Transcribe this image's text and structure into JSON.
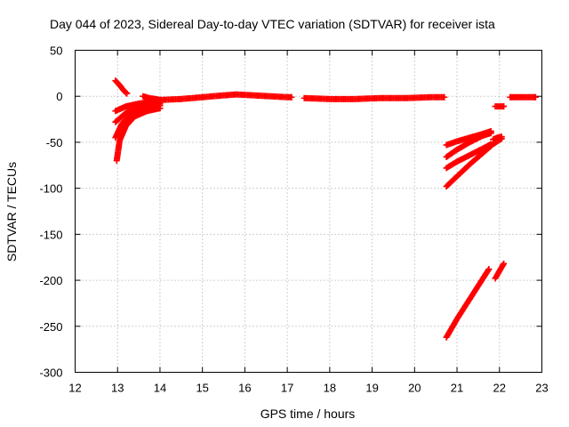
{
  "chart_data": {
    "type": "scatter",
    "title": "Day 044 of 2023, Sidereal Day-to-day VTEC variation (SDTVAR) for receiver ista",
    "xlabel": "GPS time / hours",
    "ylabel": "SDTVAR / TECUs",
    "xlim": [
      12,
      23
    ],
    "ylim": [
      -300,
      50
    ],
    "xticks": [
      "12",
      "13",
      "14",
      "15",
      "16",
      "17",
      "18",
      "19",
      "20",
      "21",
      "22",
      "23"
    ],
    "yticks": [
      "50",
      "0",
      "-50",
      "-100",
      "-150",
      "-200",
      "-250",
      "-300"
    ],
    "grid": true,
    "marker": "+",
    "color": "#ff0000",
    "series": [
      {
        "x": [
          12.95,
          13.05,
          13.15,
          13.22
        ],
        "y": [
          17,
          12,
          6,
          3
        ]
      },
      {
        "x": [
          12.95,
          13.2,
          13.5,
          13.8,
          14.0
        ],
        "y": [
          -16,
          -11,
          -8,
          -6,
          -5
        ]
      },
      {
        "x": [
          12.95,
          13.2,
          13.5,
          13.8,
          14.0
        ],
        "y": [
          -28,
          -18,
          -12,
          -9,
          -8
        ]
      },
      {
        "x": [
          12.95,
          13.1,
          13.3,
          13.6,
          13.9,
          14.0
        ],
        "y": [
          -45,
          -30,
          -20,
          -14,
          -11,
          -10
        ]
      },
      {
        "x": [
          12.98,
          13.05,
          13.2,
          13.4,
          13.7,
          14.0
        ],
        "y": [
          -70,
          -48,
          -32,
          -22,
          -16,
          -13
        ]
      },
      {
        "x": [
          13.6,
          13.75,
          13.9,
          14.0
        ],
        "y": [
          0,
          -2,
          -3,
          -4
        ]
      },
      {
        "x": [
          14.0,
          14.5,
          15.0,
          15.5,
          15.8,
          16.2,
          16.6,
          17.0,
          17.1
        ],
        "y": [
          -4,
          -3,
          -1,
          1,
          2,
          1,
          0,
          -1,
          -1
        ]
      },
      {
        "x": [
          17.4,
          18.0,
          18.6,
          19.2,
          19.8,
          20.4,
          20.7
        ],
        "y": [
          -2,
          -3,
          -3,
          -2,
          -2,
          -1,
          -1
        ]
      },
      {
        "x": [
          20.75,
          21.0,
          21.3,
          21.6,
          21.8
        ],
        "y": [
          -53,
          -49,
          -45,
          -41,
          -38
        ]
      },
      {
        "x": [
          20.75,
          21.0,
          21.3,
          21.6,
          21.8
        ],
        "y": [
          -66,
          -58,
          -50,
          -43,
          -40
        ]
      },
      {
        "x": [
          20.75,
          21.0,
          21.3,
          21.6,
          21.8
        ],
        "y": [
          -78,
          -71,
          -64,
          -57,
          -52
        ]
      },
      {
        "x": [
          20.75,
          21.0,
          21.3,
          21.6,
          21.85,
          22.05
        ],
        "y": [
          -98,
          -87,
          -74,
          -62,
          -52,
          -46
        ]
      },
      {
        "x": [
          21.85,
          21.95,
          22.05
        ],
        "y": [
          -47,
          -45,
          -44
        ]
      },
      {
        "x": [
          20.75,
          21.0,
          21.25,
          21.5,
          21.75
        ],
        "y": [
          -262,
          -242,
          -224,
          -206,
          -188
        ]
      },
      {
        "x": [
          21.9,
          22.0,
          22.1
        ],
        "y": [
          -198,
          -190,
          -182
        ]
      },
      {
        "x": [
          21.9,
          22.0,
          22.1
        ],
        "y": [
          -11,
          -11,
          -11
        ]
      },
      {
        "x": [
          22.25,
          22.5,
          22.75,
          22.85
        ],
        "y": [
          -1,
          -1,
          -1,
          -1
        ]
      }
    ]
  }
}
